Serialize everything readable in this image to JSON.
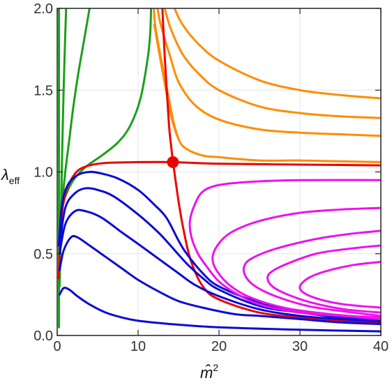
{
  "chart_data": {
    "type": "line",
    "title": "",
    "xlabel": "m̂",
    "xlabel_superscript": "2",
    "ylabel": "λ",
    "ylabel_subscript": "eff",
    "xlim": [
      0,
      40
    ],
    "ylim": [
      0,
      2.0
    ],
    "x_ticks": [
      "0",
      "10",
      "20",
      "30",
      "40"
    ],
    "y_ticks": [
      "0.0",
      "0.5",
      "1.0",
      "1.5",
      "2.0"
    ],
    "grid": true,
    "frame": "box",
    "legend": "none",
    "colors": {
      "green": "#1aa01a",
      "orange": "#ff8c00",
      "red": "#ee0000",
      "blue": "#0a0ad6",
      "magenta": "#ee11ee",
      "grid": "#e6e6e6",
      "frame": "#222222"
    },
    "series": [
      {
        "color": "green",
        "points": [
          [
            0.22,
            0.05
          ],
          [
            0.22,
            0.6
          ],
          [
            0.22,
            1.2
          ],
          [
            0.22,
            2.0
          ]
        ]
      },
      {
        "color": "green",
        "points": [
          [
            0.3,
            0.3
          ],
          [
            0.45,
            0.7
          ],
          [
            0.65,
            1.2
          ],
          [
            0.85,
            1.6
          ],
          [
            1.1,
            2.0
          ]
        ]
      },
      {
        "color": "green",
        "points": [
          [
            0.35,
            0.6
          ],
          [
            0.6,
            0.8
          ],
          [
            1.0,
            1.0
          ],
          [
            1.5,
            1.2
          ],
          [
            2.0,
            1.4
          ],
          [
            2.6,
            1.6
          ],
          [
            3.3,
            1.8
          ],
          [
            4.0,
            2.0
          ]
        ]
      },
      {
        "color": "green",
        "points": [
          [
            0.4,
            0.75
          ],
          [
            1.0,
            0.85
          ],
          [
            2.0,
            0.95
          ],
          [
            3.5,
            1.03
          ],
          [
            5.5,
            1.1
          ],
          [
            7.5,
            1.18
          ],
          [
            9.0,
            1.28
          ],
          [
            10.3,
            1.45
          ],
          [
            11.2,
            1.7
          ],
          [
            11.5,
            1.85
          ],
          [
            11.6,
            2.0
          ]
        ]
      },
      {
        "color": "orange",
        "points": [
          [
            11.95,
            2.0
          ],
          [
            12.1,
            1.9
          ],
          [
            12.8,
            1.7
          ],
          [
            13.6,
            1.5
          ],
          [
            14.4,
            1.3
          ],
          [
            15.0,
            1.2
          ]
        ]
      },
      {
        "color": "orange",
        "points": [
          [
            12.4,
            2.0
          ],
          [
            12.8,
            1.9
          ],
          [
            14.0,
            1.7
          ],
          [
            15.0,
            1.55
          ],
          [
            17.0,
            1.41
          ],
          [
            20,
            1.32
          ],
          [
            25,
            1.26
          ],
          [
            30,
            1.24
          ],
          [
            35,
            1.23
          ],
          [
            40,
            1.22
          ]
        ]
      },
      {
        "color": "orange",
        "points": [
          [
            13.3,
            2.0
          ],
          [
            14.0,
            1.88
          ],
          [
            15.5,
            1.72
          ],
          [
            17.5,
            1.6
          ],
          [
            20,
            1.5
          ],
          [
            25,
            1.4
          ],
          [
            30,
            1.36
          ],
          [
            35,
            1.34
          ],
          [
            40,
            1.33
          ]
        ]
      },
      {
        "color": "orange",
        "points": [
          [
            14.5,
            2.0
          ],
          [
            15.5,
            1.9
          ],
          [
            17.5,
            1.78
          ],
          [
            20,
            1.68
          ],
          [
            25,
            1.56
          ],
          [
            30,
            1.5
          ],
          [
            35,
            1.47
          ],
          [
            40,
            1.45
          ]
        ]
      },
      {
        "color": "orange",
        "points": [
          [
            12.0,
            1.9
          ],
          [
            13.0,
            1.62
          ],
          [
            14.0,
            1.36
          ],
          [
            15.0,
            1.2
          ],
          [
            16.0,
            1.14
          ],
          [
            18.0,
            1.1
          ],
          [
            20,
            1.09
          ],
          [
            25,
            1.07
          ],
          [
            30,
            1.07
          ],
          [
            35,
            1.065
          ],
          [
            40,
            1.06
          ]
        ]
      },
      {
        "color": "red",
        "points": [
          [
            13.0,
            2.0
          ],
          [
            13.3,
            1.7
          ],
          [
            13.8,
            1.3
          ],
          [
            14.1,
            1.15
          ],
          [
            14.4,
            1.03
          ],
          [
            15.0,
            0.82
          ],
          [
            15.6,
            0.65
          ],
          [
            16.5,
            0.46
          ],
          [
            18.0,
            0.3
          ],
          [
            20,
            0.22
          ],
          [
            25,
            0.14
          ],
          [
            30,
            0.11
          ],
          [
            35,
            0.09
          ],
          [
            40,
            0.08
          ]
        ]
      },
      {
        "color": "red",
        "points": [
          [
            0.2,
            0.35
          ],
          [
            0.5,
            0.7
          ],
          [
            1.0,
            0.86
          ],
          [
            1.7,
            0.95
          ],
          [
            2.6,
            1.01
          ],
          [
            4.0,
            1.04
          ],
          [
            6.0,
            1.055
          ],
          [
            10,
            1.06
          ],
          [
            14.3,
            1.06
          ],
          [
            20,
            1.05
          ],
          [
            30,
            1.045
          ],
          [
            40,
            1.04
          ]
        ]
      },
      {
        "color": "blue",
        "points": [
          [
            0.2,
            0.55
          ],
          [
            0.6,
            0.8
          ],
          [
            1.3,
            0.92
          ],
          [
            2.5,
            0.98
          ],
          [
            4.0,
            1.0
          ],
          [
            5.5,
            0.99
          ],
          [
            7.5,
            0.96
          ],
          [
            10,
            0.89
          ],
          [
            12,
            0.8
          ],
          [
            13.5,
            0.72
          ],
          [
            15,
            0.58
          ],
          [
            16,
            0.5
          ],
          [
            18,
            0.38
          ],
          [
            20,
            0.3
          ],
          [
            25,
            0.2
          ],
          [
            30,
            0.15
          ],
          [
            35,
            0.12
          ],
          [
            40,
            0.1
          ]
        ]
      },
      {
        "color": "blue",
        "points": [
          [
            0.3,
            0.55
          ],
          [
            1.0,
            0.78
          ],
          [
            2.2,
            0.87
          ],
          [
            3.5,
            0.9
          ],
          [
            5.0,
            0.89
          ],
          [
            7,
            0.85
          ],
          [
            10,
            0.74
          ],
          [
            12.5,
            0.63
          ],
          [
            14,
            0.55
          ],
          [
            16,
            0.44
          ],
          [
            18,
            0.35
          ],
          [
            20,
            0.28
          ],
          [
            25,
            0.18
          ],
          [
            30,
            0.14
          ],
          [
            35,
            0.11
          ],
          [
            40,
            0.09
          ]
        ]
      },
      {
        "color": "blue",
        "points": [
          [
            0.3,
            0.5
          ],
          [
            1.0,
            0.68
          ],
          [
            2.2,
            0.76
          ],
          [
            3.5,
            0.76
          ],
          [
            5.5,
            0.72
          ],
          [
            8,
            0.63
          ],
          [
            10,
            0.56
          ],
          [
            12.5,
            0.47
          ],
          [
            15,
            0.38
          ],
          [
            17,
            0.31
          ],
          [
            20,
            0.24
          ],
          [
            25,
            0.16
          ],
          [
            30,
            0.12
          ],
          [
            35,
            0.1
          ],
          [
            40,
            0.085
          ]
        ]
      },
      {
        "color": "blue",
        "points": [
          [
            0.3,
            0.4
          ],
          [
            0.8,
            0.52
          ],
          [
            1.7,
            0.6
          ],
          [
            2.5,
            0.6
          ],
          [
            4,
            0.55
          ],
          [
            6,
            0.48
          ],
          [
            8,
            0.41
          ],
          [
            10,
            0.34
          ],
          [
            12.5,
            0.27
          ],
          [
            15,
            0.21
          ],
          [
            18,
            0.17
          ],
          [
            22,
            0.13
          ],
          [
            25,
            0.12
          ],
          [
            30,
            0.1
          ],
          [
            35,
            0.08
          ],
          [
            40,
            0.07
          ]
        ]
      },
      {
        "color": "blue",
        "points": [
          [
            0.3,
            0.25
          ],
          [
            0.8,
            0.29
          ],
          [
            1.5,
            0.28
          ],
          [
            2.5,
            0.24
          ],
          [
            4,
            0.19
          ],
          [
            6,
            0.14
          ],
          [
            8,
            0.11
          ],
          [
            10,
            0.09
          ],
          [
            14,
            0.07
          ],
          [
            20,
            0.05
          ],
          [
            30,
            0.035
          ],
          [
            40,
            0.025
          ]
        ]
      },
      {
        "color": "magenta",
        "points": [
          [
            40,
            0.95
          ],
          [
            30,
            0.95
          ],
          [
            24,
            0.94
          ],
          [
            20,
            0.92
          ],
          [
            18,
            0.88
          ],
          [
            17.0,
            0.8
          ],
          [
            16.4,
            0.7
          ],
          [
            16.6,
            0.6
          ],
          [
            17.4,
            0.5
          ],
          [
            18.5,
            0.42
          ],
          [
            20,
            0.33
          ],
          [
            22,
            0.26
          ],
          [
            25,
            0.19
          ],
          [
            30,
            0.14
          ],
          [
            35,
            0.12
          ],
          [
            40,
            0.1
          ]
        ]
      },
      {
        "color": "magenta",
        "points": [
          [
            40,
            0.78
          ],
          [
            35,
            0.77
          ],
          [
            30,
            0.75
          ],
          [
            25,
            0.7
          ],
          [
            21.5,
            0.63
          ],
          [
            19.8,
            0.55
          ],
          [
            19.2,
            0.47
          ],
          [
            19.8,
            0.39
          ],
          [
            21.5,
            0.3
          ],
          [
            24,
            0.23
          ],
          [
            28,
            0.17
          ],
          [
            32,
            0.14
          ],
          [
            36,
            0.12
          ],
          [
            40,
            0.11
          ]
        ]
      },
      {
        "color": "magenta",
        "points": [
          [
            40,
            0.64
          ],
          [
            36,
            0.62
          ],
          [
            32,
            0.59
          ],
          [
            27,
            0.53
          ],
          [
            24,
            0.47
          ],
          [
            23.1,
            0.42
          ],
          [
            23.3,
            0.36
          ],
          [
            24.5,
            0.3
          ],
          [
            27,
            0.24
          ],
          [
            31,
            0.18
          ],
          [
            35,
            0.15
          ],
          [
            40,
            0.12
          ]
        ]
      },
      {
        "color": "magenta",
        "points": [
          [
            40,
            0.55
          ],
          [
            36,
            0.53
          ],
          [
            32,
            0.5
          ],
          [
            28.5,
            0.44
          ],
          [
            26.5,
            0.39
          ],
          [
            26.0,
            0.35
          ],
          [
            26.6,
            0.3
          ],
          [
            28.5,
            0.25
          ],
          [
            31.5,
            0.2
          ],
          [
            35.5,
            0.16
          ],
          [
            40,
            0.14
          ]
        ]
      },
      {
        "color": "magenta",
        "points": [
          [
            40,
            0.45
          ],
          [
            36.5,
            0.43
          ],
          [
            33,
            0.39
          ],
          [
            31,
            0.35
          ],
          [
            30.0,
            0.3
          ],
          [
            30.5,
            0.26
          ],
          [
            32.5,
            0.22
          ],
          [
            35.5,
            0.19
          ],
          [
            40,
            0.17
          ]
        ]
      }
    ],
    "marker": {
      "color": "red",
      "x": 14.3,
      "y": 1.06
    }
  }
}
